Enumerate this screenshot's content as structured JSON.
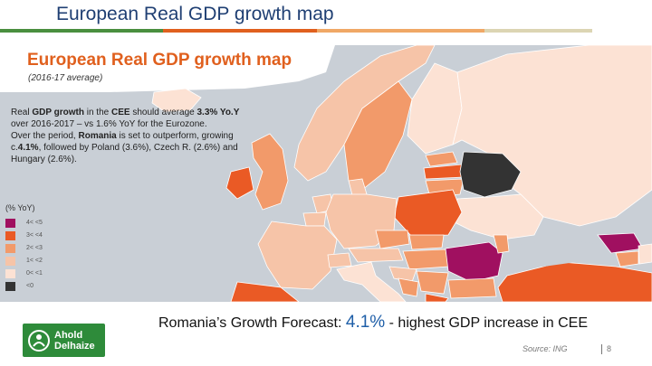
{
  "slide": {
    "title": "European Real GDP growth map",
    "title_bar_colors": [
      "#4a8f3f",
      "#e0601e",
      "#f0a866",
      "#dcd5b3"
    ]
  },
  "map": {
    "title": "European Real GDP growth map",
    "subtitle": "(2016-17 average)",
    "colors": {
      "sea": "#c9cfd6",
      "non_europe": "#d7d7d7",
      "band_lt0": "#333333",
      "band_0_1": "#fce2d4",
      "band_1_2": "#f6c4a8",
      "band_2_3": "#f29a6a",
      "band_3_4": "#ea5a25",
      "band_gt4": "#a01060"
    },
    "description": {
      "p1_a": "Real ",
      "p1_b": "GDP growth",
      "p1_c": " in the ",
      "p1_d": "CEE",
      "p1_e": " should average ",
      "p1_f": "3.3% Yo.Y",
      "p1_g": " over 2016-2017 – vs 1.6% YoY for the Eurozone.",
      "p2_a": "Over the period, ",
      "p2_b": "Romania",
      "p2_c": " is set to outperform, growing c.",
      "p2_d": "4.1%",
      "p2_e": ", followed by Poland (3.6%), Czech R. (2.6%) and Hungary (2.6%)."
    },
    "legend": {
      "title": "(% YoY)",
      "items": [
        {
          "label": "4< <5",
          "color": "#a01060"
        },
        {
          "label": "3< <4",
          "color": "#ea5a25"
        },
        {
          "label": "2< <3",
          "color": "#f29a6a"
        },
        {
          "label": "1< <2",
          "color": "#f6c4a8"
        },
        {
          "label": "0< <1",
          "color": "#fce2d4"
        },
        {
          "label": "<0",
          "color": "#333333"
        }
      ]
    }
  },
  "logo": {
    "line1": "Ahold",
    "line2": "Delhaize",
    "color": "#2e8b3a"
  },
  "footer": {
    "forecast_prefix": "Romania’s Growth Forecast: ",
    "forecast_value": "4.1%",
    "forecast_suffix": " - highest GDP increase in CEE",
    "source": "Source: ING",
    "page": "8"
  }
}
